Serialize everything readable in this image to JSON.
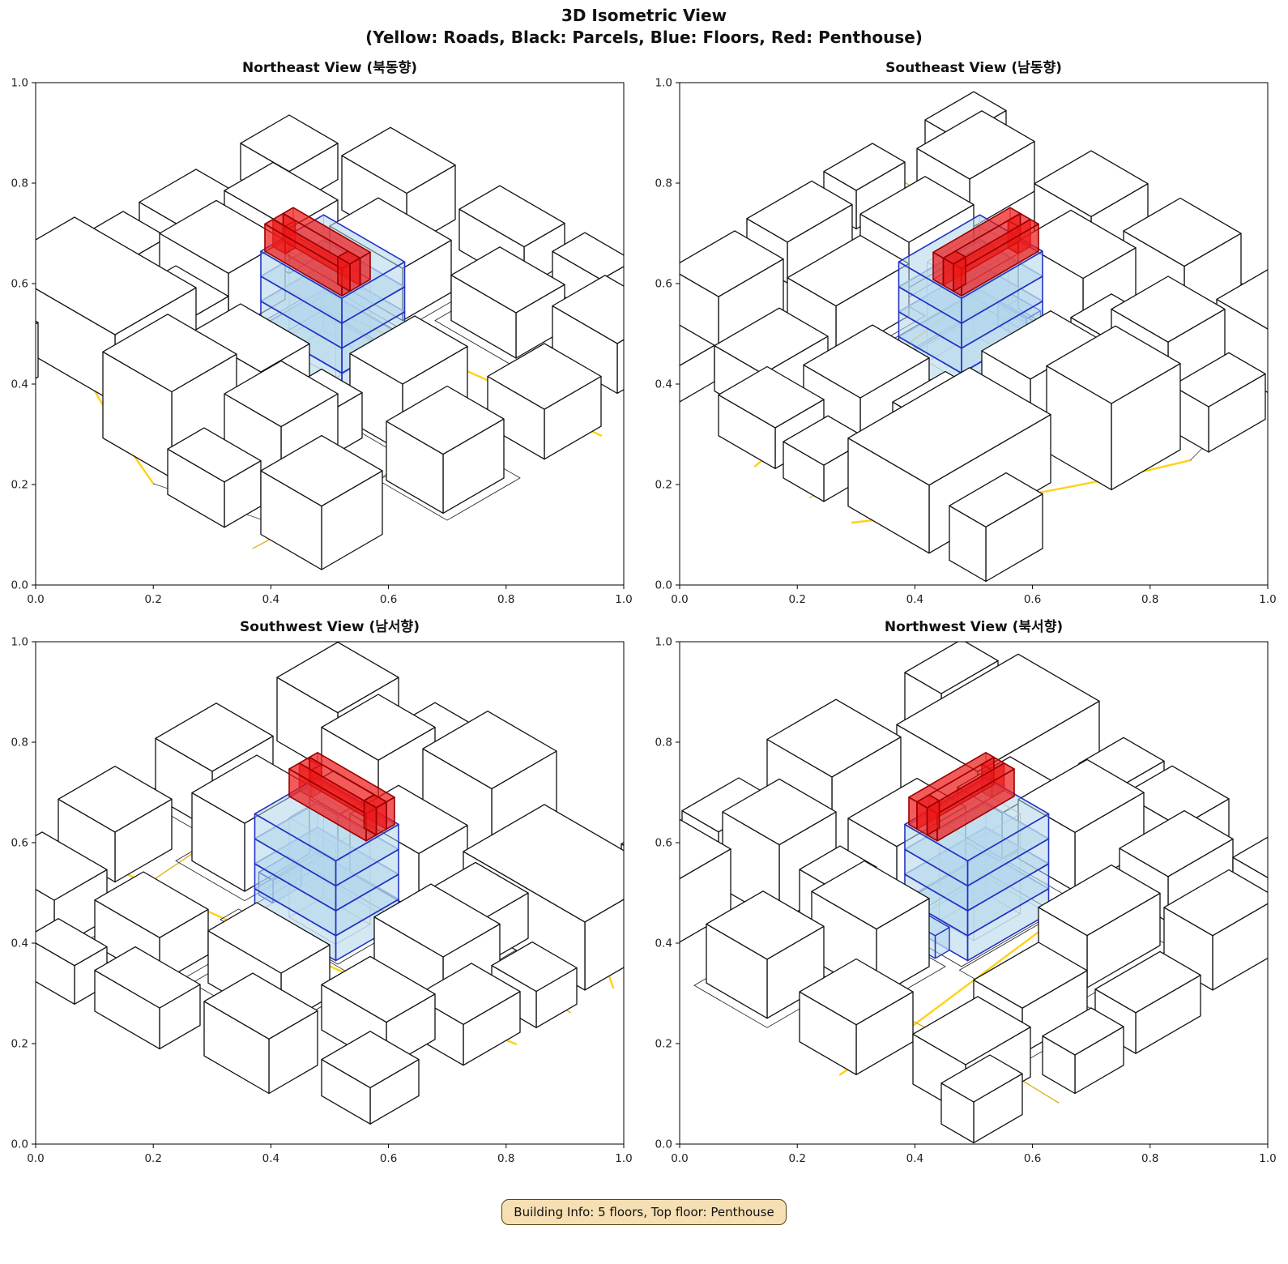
{
  "figure": {
    "title_line1": "3D Isometric View",
    "title_line2": "(Yellow: Roads, Black: Parcels, Blue: Floors, Red: Penthouse)",
    "footer_badge": "Building Info: 5 floors, Top floor: Penthouse"
  },
  "views": [
    {
      "id": "northeast",
      "title": "Northeast View (북동향)",
      "rotation_deg": 0
    },
    {
      "id": "southeast",
      "title": "Southeast View (남동향)",
      "rotation_deg": 90
    },
    {
      "id": "southwest",
      "title": "Southwest View (남서향)",
      "rotation_deg": 180
    },
    {
      "id": "northwest",
      "title": "Northwest View (북서향)",
      "rotation_deg": 270
    }
  ],
  "colors": {
    "road_major": "#FFD116",
    "road_minor": "#D8A800",
    "road_gray": "#555555",
    "parcel_edge": "#1a1a1a",
    "building_fill": "#ffffff",
    "building_edge": "#111111",
    "floor_fill": "rgba(176,214,235,0.55)",
    "floor_edge": "#2333C4",
    "floor_hidden_edge": "#9DB9D6",
    "core_edge": "#aaaaaa",
    "penthouse_fill": "rgba(238,21,21,0.70)",
    "penthouse_edge": "#990000",
    "penthouse_hidden_edge": "#BB4040",
    "axis_color": "#000000",
    "tick_label_color": "#222222"
  },
  "chart_data": {
    "type": "3d-isometric-city",
    "title": "3D Isometric View",
    "subtitle": "(Yellow: Roads, Black: Parcels, Blue: Floors, Red: Penthouse)",
    "legend": {
      "yellow": "Roads",
      "black": "Parcels",
      "blue": "Floors",
      "red": "Penthouse"
    },
    "building_info": {
      "floors": 5,
      "top_floor": "Penthouse"
    },
    "axes": {
      "xlim": [
        0.0,
        1.0
      ],
      "ylim": [
        0.0,
        1.0
      ],
      "xticks": [
        "0.0",
        "0.2",
        "0.4",
        "0.6",
        "0.8",
        "1.0"
      ],
      "yticks": [
        "0.0",
        "0.2",
        "0.4",
        "0.6",
        "0.8",
        "1.0"
      ]
    },
    "world": {
      "extent": [
        0,
        0,
        10,
        10
      ],
      "buildings": [
        [
          0.3,
          6.6,
          3.3,
          8.6,
          1.5
        ],
        [
          3.9,
          7.9,
          5.6,
          9.5,
          1.9
        ],
        [
          6.1,
          7.3,
          7.5,
          8.7,
          1.7
        ],
        [
          7.9,
          8.1,
          9.4,
          9.6,
          1.4
        ],
        [
          8.3,
          5.4,
          9.7,
          6.9,
          1.3
        ],
        [
          8.4,
          3.1,
          9.8,
          4.5,
          1.1
        ],
        [
          6.6,
          4.5,
          7.9,
          6.1,
          1.5
        ],
        [
          6.1,
          6.3,
          7.1,
          7.2,
          1.0
        ],
        [
          4.0,
          6.2,
          5.7,
          7.4,
          1.3
        ],
        [
          2.1,
          5.9,
          3.4,
          7.0,
          1.0
        ],
        [
          1.5,
          4.3,
          3.2,
          5.7,
          1.3
        ],
        [
          0.2,
          3.5,
          1.4,
          4.9,
          0.9
        ],
        [
          3.3,
          2.1,
          5.1,
          3.3,
          1.15
        ],
        [
          1.1,
          2.5,
          2.7,
          3.7,
          1.0
        ],
        [
          5.7,
          1.5,
          7.3,
          2.7,
          1.0
        ],
        [
          7.7,
          0.9,
          9.3,
          2.2,
          1.1
        ],
        [
          2.0,
          0.5,
          3.6,
          1.7,
          1.2
        ],
        [
          4.3,
          0.1,
          5.9,
          1.1,
          0.9
        ],
        [
          0.1,
          1.1,
          1.3,
          2.3,
          0.8
        ],
        [
          6.3,
          0.0,
          7.5,
          0.8,
          0.85
        ],
        [
          0.4,
          9.0,
          1.8,
          9.9,
          1.2
        ],
        [
          5.9,
          9.0,
          7.3,
          9.9,
          1.0
        ],
        [
          8.6,
          0.2,
          9.8,
          1.0,
          0.9
        ],
        [
          0.1,
          5.2,
          1.2,
          6.2,
          0.8
        ]
      ],
      "parcels": [
        [
          3.6,
          3.6,
          6.3,
          4.05
        ],
        [
          3.9,
          4.1,
          6.2,
          5.8
        ],
        [
          6.4,
          4.3,
          8.1,
          6.2
        ],
        [
          1.3,
          4.1,
          3.4,
          5.85
        ],
        [
          3.2,
          1.9,
          5.3,
          3.5
        ],
        [
          5.5,
          1.3,
          7.5,
          2.9
        ],
        [
          8.2,
          5.2,
          9.9,
          7.0
        ],
        [
          2.0,
          5.9,
          3.5,
          7.1
        ]
      ],
      "roads": [
        {
          "kind": "major",
          "width": 2.4,
          "points": [
            [
              10,
              3.3
            ],
            [
              8,
              3.45
            ],
            [
              6,
              3.7
            ],
            [
              4,
              3.95
            ],
            [
              2,
              4.25
            ],
            [
              0,
              4.6
            ]
          ]
        },
        {
          "kind": "minor",
          "width": 1.2,
          "points": [
            [
              7.9,
              0
            ],
            [
              7.85,
              2
            ],
            [
              8.0,
              4
            ],
            [
              8.15,
              6
            ],
            [
              8.2,
              8
            ],
            [
              8.1,
              10
            ]
          ]
        },
        {
          "kind": "major",
          "width": 2.4,
          "points": [
            [
              0,
              7.0
            ],
            [
              1.2,
              7.8
            ],
            [
              2.6,
              8.5
            ],
            [
              4.2,
              9.3
            ],
            [
              5.5,
              9.85
            ]
          ]
        },
        {
          "kind": "major",
          "width": 2.0,
          "points": [
            [
              2.6,
              8.5
            ],
            [
              3.5,
              7.9
            ]
          ]
        },
        {
          "kind": "minor",
          "width": 1.0,
          "points": [
            [
              0,
              5.95
            ],
            [
              2.0,
              5.85
            ],
            [
              3.7,
              5.9
            ]
          ]
        },
        {
          "kind": "gray",
          "width": 0.9,
          "points": [
            [
              5.5,
              9.85
            ],
            [
              7.5,
              9.3
            ],
            [
              9.0,
              9.0
            ]
          ]
        }
      ],
      "highlight": {
        "floor_footprint": [
          4.0,
          4.15,
          6.0,
          5.7
        ],
        "floor_count": 4,
        "floor_height": 0.55,
        "inner_core": [
          4.35,
          4.5,
          5.5,
          5.35
        ],
        "annex": [
          6.0,
          4.6,
          6.35,
          5.3,
          0.5
        ],
        "penthouse": {
          "z0": 2.2,
          "z1": 2.8,
          "walls": [
            [
              4.05,
              4.95,
              5.95,
              5.2
            ],
            [
              4.05,
              5.45,
              5.95,
              5.65
            ],
            [
              4.05,
              5.2,
              4.35,
              5.45
            ],
            [
              5.65,
              5.2,
              5.95,
              5.45
            ]
          ]
        }
      }
    }
  }
}
